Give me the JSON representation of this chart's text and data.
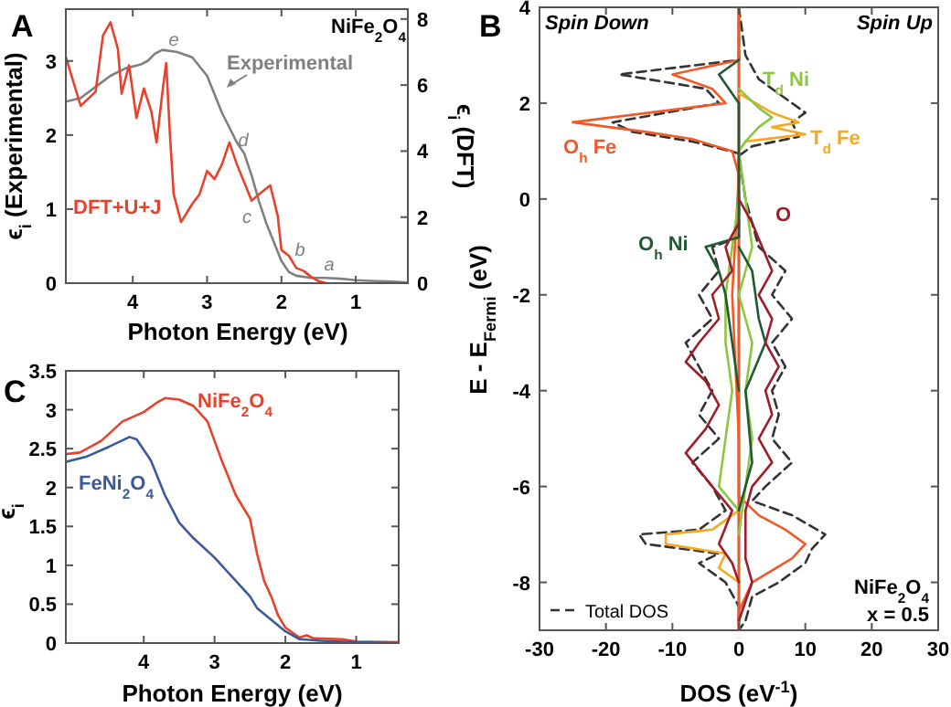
{
  "chart_data": [
    {
      "type": "line",
      "title": "A",
      "xlabel": "Photon Energy (eV)",
      "ylabel": "ϵ$_{i}$ (Experimental)",
      "y2label": "ϵ$_{i}$ (DFT)",
      "xlim": [
        4.9,
        0.3
      ],
      "xticks": [
        4,
        3,
        2,
        1
      ],
      "ylim": [
        0,
        3.7
      ],
      "yticks": [
        0,
        1,
        2,
        3
      ],
      "y2lim": [
        0,
        8.3
      ],
      "y2ticks": [
        0,
        2,
        4,
        6,
        8
      ],
      "grid": false,
      "legend": false,
      "annotations": [
        "NiFe$_{2}$O$_{4}$",
        "a",
        "b",
        "c",
        "d",
        "e"
      ],
      "series": [
        {
          "name": "Experimental",
          "color": "#808080",
          "x": [
            4.9,
            4.7,
            4.5,
            4.3,
            4.1,
            3.9,
            3.8,
            3.7,
            3.6,
            3.4,
            3.2,
            3.0,
            2.8,
            2.6,
            2.5,
            2.4,
            2.3,
            2.2,
            2.1,
            2.0,
            1.9,
            1.8,
            1.6,
            1.4,
            1.2,
            1.0,
            0.8,
            0.5,
            0.3
          ],
          "values": [
            2.45,
            2.5,
            2.65,
            2.8,
            2.9,
            2.95,
            3.0,
            3.1,
            3.15,
            3.12,
            3.05,
            2.8,
            2.3,
            1.9,
            1.75,
            1.45,
            1.1,
            0.8,
            0.55,
            0.3,
            0.15,
            0.1,
            0.07,
            0.07,
            0.06,
            0.04,
            0.03,
            0.02,
            0.01
          ]
        },
        {
          "name": "DFT+U+J",
          "color": "#e8412c",
          "axis": "y2",
          "x": [
            4.9,
            4.7,
            4.5,
            4.4,
            4.3,
            4.2,
            4.15,
            4.05,
            3.95,
            3.85,
            3.75,
            3.68,
            3.6,
            3.55,
            3.5,
            3.45,
            3.35,
            3.2,
            3.1,
            3.0,
            2.9,
            2.8,
            2.7,
            2.6,
            2.5,
            2.4,
            2.3,
            2.15,
            2.05,
            2.0,
            1.9,
            1.8,
            1.7,
            1.6,
            1.5,
            1.4
          ],
          "values": [
            6.85,
            5.37,
            5.8,
            7.5,
            7.9,
            7.1,
            5.74,
            6.6,
            5.0,
            5.9,
            5.2,
            4.26,
            5.8,
            6.67,
            4.5,
            2.7,
            1.85,
            2.4,
            2.7,
            3.4,
            3.15,
            3.6,
            4.26,
            3.6,
            3.05,
            2.5,
            2.7,
            2.96,
            2.04,
            1.0,
            0.83,
            0.46,
            0.37,
            0.19,
            0.06,
            0
          ]
        }
      ]
    },
    {
      "type": "line",
      "title": "B",
      "xlabel": "DOS (eV$^{-1}$)",
      "ylabel": "E - E$_{Fermi}$ (eV)",
      "xlim": [
        -30,
        30
      ],
      "xticks": [
        -30,
        -20,
        -10,
        0,
        10,
        20,
        30
      ],
      "ylim": [
        -9,
        4
      ],
      "yticks": [
        -8,
        -6,
        -4,
        -2,
        0,
        2,
        4
      ],
      "grid": false,
      "legend": "bottom left",
      "annotations": [
        "Spin Down",
        "Spin Up",
        "NiFe$_{2}$O$_{4}$",
        "x = 0.5"
      ],
      "ref_lines": [
        {
          "axis": "x",
          "value": 0,
          "color": "#000000"
        }
      ],
      "series": [
        {
          "name": "Total DOS",
          "color": "#333333",
          "line_style": "dashed",
          "x": [
            0,
            0,
            -18,
            -5,
            -3,
            -19,
            -16,
            -7,
            0,
            0,
            -4,
            -3,
            -6,
            -4,
            -8,
            -6,
            -4,
            -6,
            -3,
            -7,
            -4,
            -2,
            -6,
            -15,
            -14,
            -3,
            -6,
            -2,
            0,
            0
          ],
          "values": [
            4,
            2.9,
            2.6,
            2.3,
            2.0,
            1.6,
            1.4,
            1.2,
            0.95,
            -0.8,
            -1.0,
            -1.5,
            -2.0,
            -2.5,
            -3.0,
            -3.5,
            -4.0,
            -4.5,
            -5.0,
            -5.5,
            -6.0,
            -6.5,
            -6.9,
            -7.0,
            -7.2,
            -7.4,
            -7.6,
            -8.0,
            -8.5,
            -9
          ]
        },
        {
          "color": "#333333",
          "line_style": "dashed",
          "x": [
            0,
            1,
            3,
            10,
            8,
            9,
            2,
            0,
            1,
            3,
            7,
            5,
            8,
            5,
            7,
            5,
            6,
            5,
            8,
            4,
            2,
            8,
            13,
            11,
            10,
            6,
            2,
            1,
            0
          ],
          "values": [
            4,
            3,
            2.5,
            1.8,
            1.6,
            1.3,
            1.1,
            0.9,
            0,
            -1,
            -1.5,
            -2,
            -2.5,
            -3,
            -3.5,
            -4,
            -4.5,
            -5,
            -5.5,
            -6,
            -6.3,
            -6.6,
            -7,
            -7.3,
            -7.6,
            -8,
            -8.3,
            -8.8,
            -9
          ]
        },
        {
          "name": "O$_{h}$ Fe",
          "color": "#f05a28",
          "x": [
            0,
            0,
            -10,
            -4,
            -2,
            -25,
            -14,
            -7,
            -1,
            0,
            -1,
            0,
            0
          ],
          "values": [
            4,
            2.9,
            2.6,
            2.3,
            2.0,
            1.6,
            1.4,
            1.25,
            1.0,
            0.5,
            -2,
            -5,
            -9
          ]
        },
        {
          "color": "#f05a28",
          "x": [
            0,
            0,
            3,
            7,
            10,
            8,
            2,
            0,
            0
          ],
          "values": [
            4,
            -6.2,
            -6.6,
            -6.9,
            -7.2,
            -7.5,
            -8,
            -8.6,
            -9
          ]
        },
        {
          "name": "T$_{d}$ Fe",
          "color": "#f7a823",
          "x": [
            0,
            5,
            9,
            5,
            10,
            1,
            0
          ],
          "values": [
            2.2,
            1.8,
            1.6,
            1.5,
            1.35,
            1.2,
            1.0
          ]
        },
        {
          "color": "#f7a823",
          "x": [
            0,
            -4,
            -11,
            -11,
            -2,
            -3,
            0
          ],
          "values": [
            -6.5,
            -6.9,
            -7.0,
            -7.2,
            -7.4,
            -7.7,
            -8
          ]
        },
        {
          "name": "T$_{d}$ Ni",
          "color": "#8dc63f",
          "x": [
            0,
            3,
            5,
            3,
            1,
            0,
            1,
            2,
            0,
            2,
            1,
            2,
            1,
            0
          ],
          "values": [
            2.3,
            1.9,
            1.7,
            1.5,
            1.2,
            1,
            0,
            -1,
            -2,
            -3,
            -4,
            -5,
            -6,
            -7
          ]
        },
        {
          "color": "#8dc63f",
          "x": [
            0,
            -1,
            -2,
            -2,
            -1,
            -2,
            -3,
            0
          ],
          "values": [
            0,
            -1,
            -2,
            -3,
            -4,
            -5,
            -6,
            -6.5
          ]
        },
        {
          "name": "O$_{h}$ Ni",
          "color": "#1f5a32",
          "x": [
            0,
            -3,
            -1,
            0,
            0,
            -5,
            -3,
            -2,
            -1,
            0
          ],
          "values": [
            2.9,
            2.6,
            2.2,
            2,
            -0.8,
            -1.0,
            -1.5,
            -2,
            -3,
            -4
          ]
        },
        {
          "color": "#1f5a32",
          "x": [
            0,
            2,
            3,
            4,
            1,
            2,
            0
          ],
          "values": [
            -1,
            -1.5,
            -2.5,
            -3,
            -4,
            -5.5,
            -6.5
          ]
        },
        {
          "name": "O",
          "color": "#a01c2a",
          "x": [
            0,
            2,
            5,
            3,
            5,
            4,
            6,
            4,
            5,
            3,
            5,
            2,
            1,
            1,
            2,
            0
          ],
          "values": [
            0,
            -0.5,
            -1.5,
            -2,
            -2.5,
            -3,
            -3.5,
            -4,
            -4.5,
            -5,
            -5.5,
            -6,
            -6.5,
            -7.5,
            -8,
            -8.8
          ]
        },
        {
          "color": "#a01c2a",
          "x": [
            0,
            -2,
            -1,
            -4,
            -3,
            -6,
            -8,
            -5,
            -3,
            -5,
            -8,
            -4,
            -1,
            -3,
            -1,
            0
          ],
          "values": [
            -0.5,
            -1,
            -1.5,
            -2.0,
            -2.5,
            -3.0,
            -3.4,
            -3.8,
            -4.3,
            -4.8,
            -5.3,
            -6,
            -6.5,
            -7.2,
            -7.6,
            -8
          ]
        }
      ]
    },
    {
      "type": "line",
      "title": "C",
      "xlabel": "Photon Energy (eV)",
      "ylabel": "ϵ$_{i}$",
      "xlim": [
        5.1,
        0.4
      ],
      "xticks": [
        4,
        3,
        2,
        1
      ],
      "ylim": [
        0,
        3.5
      ],
      "yticks": [
        0,
        0.5,
        1,
        1.5,
        2,
        2.5,
        3,
        3.5
      ],
      "grid": false,
      "legend": false,
      "series": [
        {
          "name": "NiFe$_{2}$O$_{4}$",
          "color": "#e8412c",
          "x": [
            5.1,
            4.9,
            4.6,
            4.3,
            4.0,
            3.8,
            3.7,
            3.5,
            3.3,
            3.1,
            2.9,
            2.7,
            2.6,
            2.5,
            2.4,
            2.3,
            2.2,
            2.1,
            2.0,
            1.8,
            1.7,
            1.6,
            1.2,
            1.0,
            0.4
          ],
          "values": [
            2.43,
            2.45,
            2.6,
            2.85,
            2.97,
            3.1,
            3.15,
            3.13,
            3.05,
            2.85,
            2.35,
            1.9,
            1.75,
            1.6,
            1.15,
            0.8,
            0.6,
            0.35,
            0.2,
            0.07,
            0.1,
            0.06,
            0.05,
            0.02,
            0.01
          ]
        },
        {
          "name": "FeNi$_{2}$O$_{4}$",
          "color": "#3a5a9a",
          "x": [
            5.1,
            4.8,
            4.5,
            4.2,
            4.1,
            3.9,
            3.7,
            3.5,
            3.3,
            3.0,
            2.7,
            2.5,
            2.4,
            2.2,
            2.0,
            1.8,
            1.5,
            1.0,
            0.4
          ],
          "values": [
            2.33,
            2.4,
            2.52,
            2.65,
            2.62,
            2.35,
            1.9,
            1.55,
            1.35,
            1.1,
            0.8,
            0.6,
            0.45,
            0.3,
            0.15,
            0.05,
            0.03,
            0.01,
            0
          ]
        }
      ]
    }
  ]
}
